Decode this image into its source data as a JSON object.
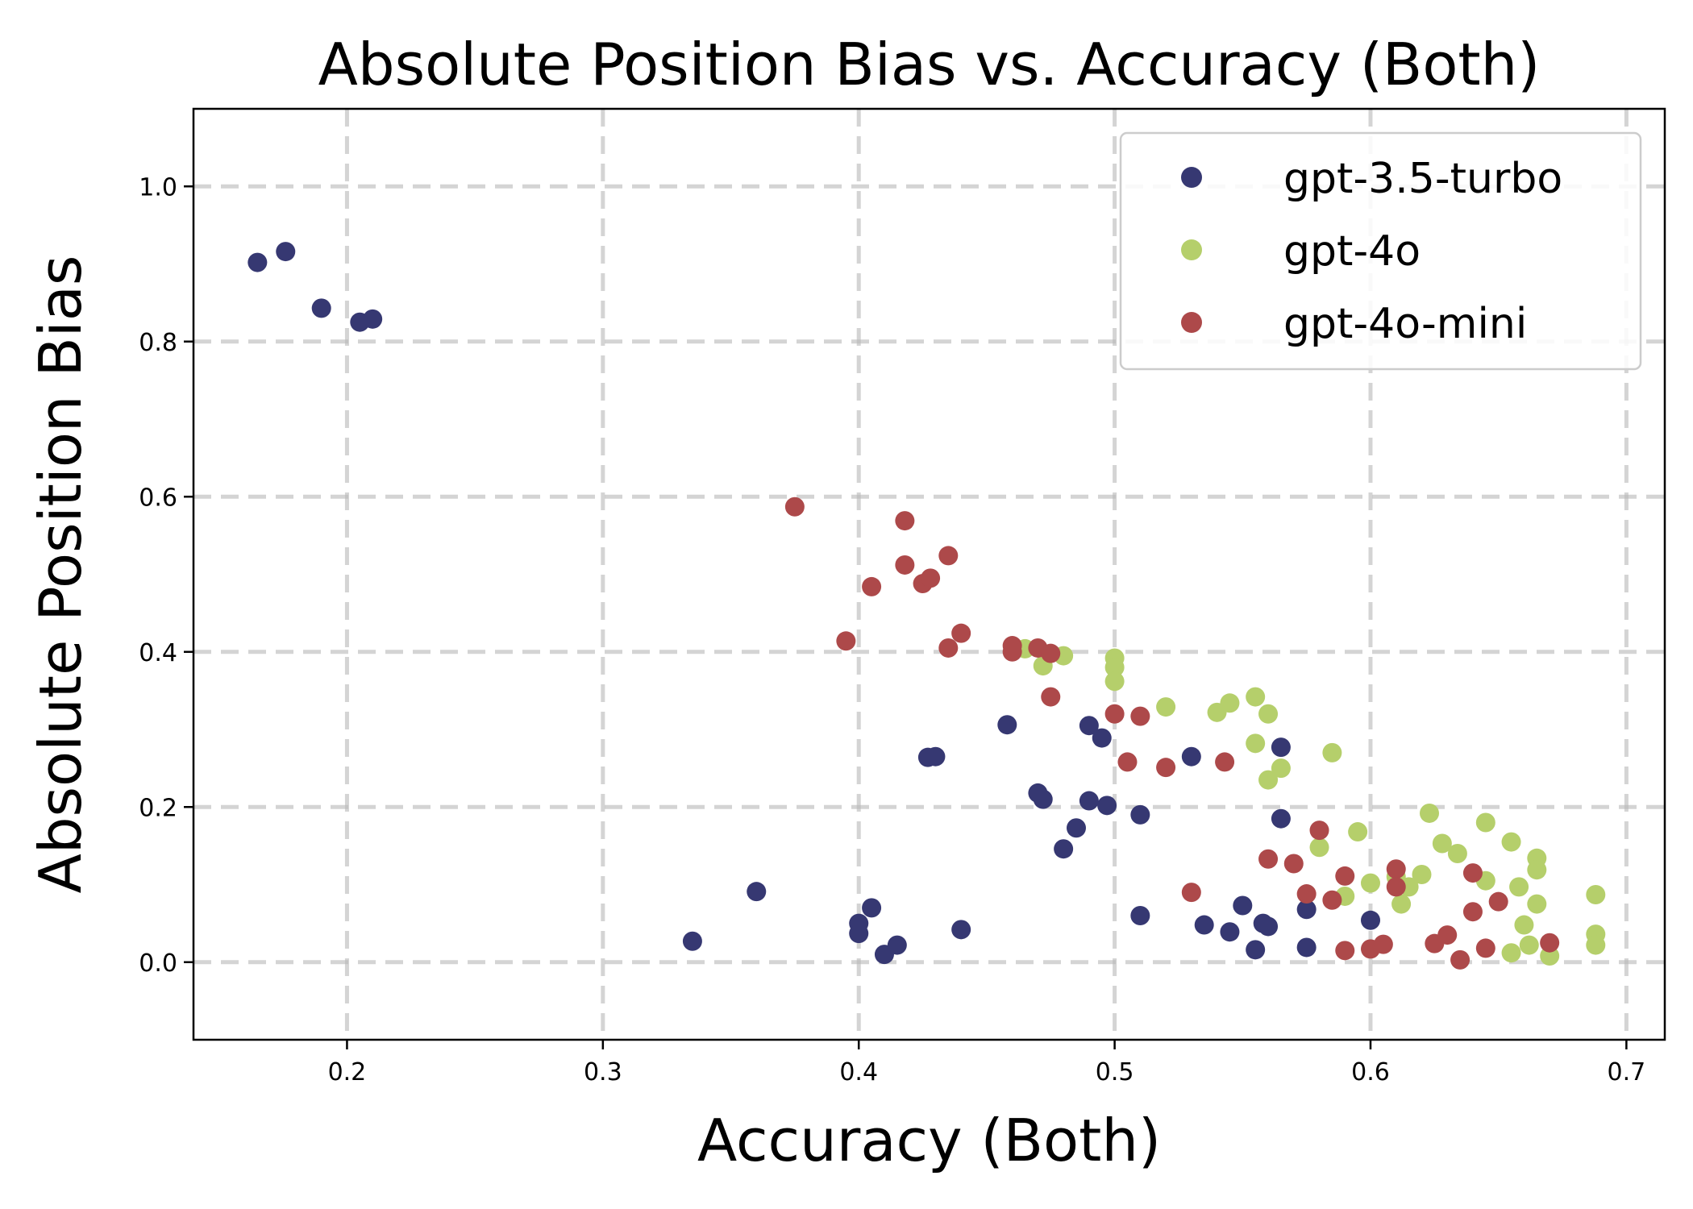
{
  "chart_data": {
    "type": "scatter",
    "title": "Absolute Position Bias vs. Accuracy (Both)",
    "xlabel": "Accuracy (Both)",
    "ylabel": "Absolute Position Bias",
    "xlim": [
      0.14,
      0.715
    ],
    "ylim": [
      -0.1,
      1.1
    ],
    "xticks": [
      0.2,
      0.3,
      0.4,
      0.5,
      0.6,
      0.7
    ],
    "xtick_labels": [
      "0.2",
      "0.3",
      "0.4",
      "0.5",
      "0.6",
      "0.7"
    ],
    "yticks": [
      0.0,
      0.2,
      0.4,
      0.6,
      0.8,
      1.0
    ],
    "ytick_labels": [
      "0.0",
      "0.2",
      "0.4",
      "0.6",
      "0.8",
      "1.0"
    ],
    "grid": true,
    "legend_position": "top-right",
    "series": [
      {
        "name": "gpt-3.5-turbo",
        "color": "#363872",
        "points": [
          [
            0.165,
            0.902
          ],
          [
            0.176,
            0.916
          ],
          [
            0.19,
            0.843
          ],
          [
            0.205,
            0.825
          ],
          [
            0.21,
            0.829
          ],
          [
            0.335,
            0.027
          ],
          [
            0.36,
            0.091
          ],
          [
            0.4,
            0.05
          ],
          [
            0.4,
            0.037
          ],
          [
            0.405,
            0.07
          ],
          [
            0.41,
            0.01
          ],
          [
            0.415,
            0.022
          ],
          [
            0.427,
            0.264
          ],
          [
            0.43,
            0.265
          ],
          [
            0.44,
            0.042
          ],
          [
            0.458,
            0.306
          ],
          [
            0.47,
            0.218
          ],
          [
            0.472,
            0.21
          ],
          [
            0.48,
            0.146
          ],
          [
            0.485,
            0.173
          ],
          [
            0.49,
            0.305
          ],
          [
            0.49,
            0.208
          ],
          [
            0.495,
            0.289
          ],
          [
            0.497,
            0.202
          ],
          [
            0.51,
            0.19
          ],
          [
            0.51,
            0.06
          ],
          [
            0.53,
            0.265
          ],
          [
            0.535,
            0.048
          ],
          [
            0.545,
            0.039
          ],
          [
            0.55,
            0.073
          ],
          [
            0.555,
            0.016
          ],
          [
            0.558,
            0.05
          ],
          [
            0.56,
            0.046
          ],
          [
            0.565,
            0.277
          ],
          [
            0.565,
            0.185
          ],
          [
            0.575,
            0.068
          ],
          [
            0.575,
            0.019
          ],
          [
            0.6,
            0.054
          ]
        ]
      },
      {
        "name": "gpt-4o",
        "color": "#b5cf6b",
        "points": [
          [
            0.465,
            0.404
          ],
          [
            0.472,
            0.382
          ],
          [
            0.48,
            0.395
          ],
          [
            0.5,
            0.392
          ],
          [
            0.5,
            0.38
          ],
          [
            0.5,
            0.362
          ],
          [
            0.52,
            0.329
          ],
          [
            0.54,
            0.322
          ],
          [
            0.545,
            0.334
          ],
          [
            0.555,
            0.342
          ],
          [
            0.555,
            0.282
          ],
          [
            0.56,
            0.32
          ],
          [
            0.56,
            0.235
          ],
          [
            0.565,
            0.25
          ],
          [
            0.58,
            0.148
          ],
          [
            0.585,
            0.27
          ],
          [
            0.59,
            0.085
          ],
          [
            0.595,
            0.168
          ],
          [
            0.6,
            0.102
          ],
          [
            0.61,
            0.11
          ],
          [
            0.612,
            0.075
          ],
          [
            0.615,
            0.097
          ],
          [
            0.62,
            0.113
          ],
          [
            0.623,
            0.192
          ],
          [
            0.628,
            0.153
          ],
          [
            0.634,
            0.14
          ],
          [
            0.645,
            0.18
          ],
          [
            0.645,
            0.105
          ],
          [
            0.655,
            0.155
          ],
          [
            0.655,
            0.012
          ],
          [
            0.658,
            0.097
          ],
          [
            0.66,
            0.048
          ],
          [
            0.662,
            0.022
          ],
          [
            0.665,
            0.134
          ],
          [
            0.665,
            0.119
          ],
          [
            0.665,
            0.075
          ],
          [
            0.67,
            0.008
          ],
          [
            0.688,
            0.087
          ],
          [
            0.688,
            0.036
          ],
          [
            0.688,
            0.022
          ]
        ]
      },
      {
        "name": "gpt-4o-mini",
        "color": "#ad494a",
        "points": [
          [
            0.375,
            0.587
          ],
          [
            0.395,
            0.414
          ],
          [
            0.405,
            0.484
          ],
          [
            0.418,
            0.569
          ],
          [
            0.418,
            0.512
          ],
          [
            0.425,
            0.488
          ],
          [
            0.428,
            0.495
          ],
          [
            0.435,
            0.524
          ],
          [
            0.435,
            0.405
          ],
          [
            0.44,
            0.424
          ],
          [
            0.46,
            0.408
          ],
          [
            0.46,
            0.4
          ],
          [
            0.47,
            0.405
          ],
          [
            0.475,
            0.398
          ],
          [
            0.475,
            0.342
          ],
          [
            0.5,
            0.32
          ],
          [
            0.505,
            0.258
          ],
          [
            0.51,
            0.317
          ],
          [
            0.52,
            0.251
          ],
          [
            0.53,
            0.09
          ],
          [
            0.543,
            0.258
          ],
          [
            0.56,
            0.133
          ],
          [
            0.57,
            0.127
          ],
          [
            0.575,
            0.088
          ],
          [
            0.58,
            0.17
          ],
          [
            0.585,
            0.08
          ],
          [
            0.59,
            0.111
          ],
          [
            0.59,
            0.015
          ],
          [
            0.6,
            0.017
          ],
          [
            0.605,
            0.023
          ],
          [
            0.61,
            0.12
          ],
          [
            0.61,
            0.097
          ],
          [
            0.625,
            0.024
          ],
          [
            0.63,
            0.035
          ],
          [
            0.635,
            0.003
          ],
          [
            0.64,
            0.115
          ],
          [
            0.64,
            0.065
          ],
          [
            0.645,
            0.018
          ],
          [
            0.65,
            0.078
          ],
          [
            0.67,
            0.025
          ]
        ]
      }
    ]
  }
}
